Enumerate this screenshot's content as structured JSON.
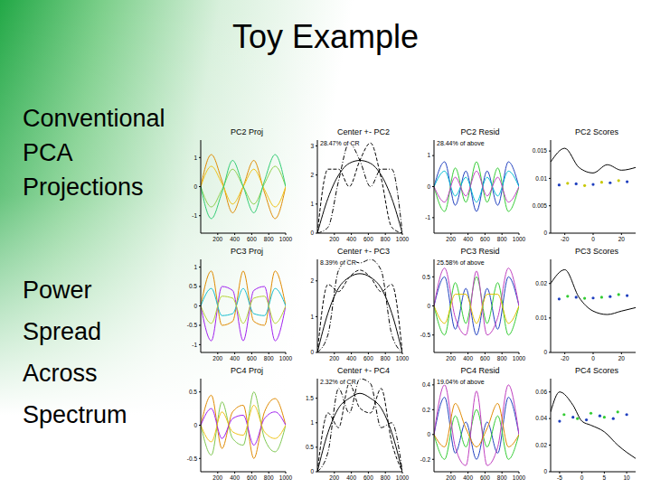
{
  "title": "Toy Example",
  "left_text": [
    [
      "Conventional",
      "PCA",
      "Projections"
    ],
    [
      "Power",
      "Spread",
      "Across",
      "Spectrum"
    ]
  ],
  "chart_data": [
    {
      "type": "line",
      "title": "PC2 Proj",
      "x": [
        0,
        125,
        250,
        375,
        500,
        625,
        750,
        875,
        1000
      ],
      "xlim": [
        0,
        1000
      ],
      "xticks": [
        200,
        400,
        600,
        800,
        1000
      ],
      "ylim": [
        -1.6,
        1.6
      ],
      "yticks": [
        -1,
        0,
        1
      ],
      "series": [
        {
          "type": "line",
          "color": "#e08a00",
          "values": [
            0,
            1.1,
            0.2,
            -0.9,
            0,
            0.9,
            -0.2,
            -1.1,
            0
          ]
        },
        {
          "type": "line",
          "color": "#f0c419",
          "values": [
            0,
            0.7,
            0.1,
            -0.6,
            0,
            0.6,
            -0.1,
            -0.7,
            0
          ]
        },
        {
          "type": "line",
          "color": "#8fd14f",
          "values": [
            0,
            -0.7,
            -0.1,
            0.6,
            0,
            -0.6,
            0.1,
            0.7,
            0
          ]
        },
        {
          "type": "line",
          "color": "#2ecc71",
          "values": [
            0,
            -1.1,
            -0.2,
            0.9,
            0,
            -0.9,
            0.2,
            1.1,
            0
          ]
        }
      ]
    },
    {
      "type": "line",
      "title": "Center +- PC2",
      "annotation": "28.47% of CR",
      "x": [
        0,
        125,
        250,
        375,
        500,
        625,
        750,
        875,
        1000
      ],
      "xlim": [
        0,
        1000
      ],
      "xticks": [
        200,
        400,
        600,
        800,
        1000
      ],
      "ylim": [
        0,
        3.2
      ],
      "yticks": [
        0,
        1,
        2,
        3
      ],
      "series": [
        {
          "type": "line",
          "color": "#000000",
          "line_style": "solid",
          "values": [
            0,
            1.2,
            2.0,
            2.4,
            2.5,
            2.4,
            2.0,
            1.2,
            0
          ]
        },
        {
          "type": "line",
          "color": "#000000",
          "line_style": "dashed",
          "values": [
            0,
            2.2,
            2.2,
            1.6,
            2.5,
            3.1,
            1.9,
            0.2,
            0
          ]
        },
        {
          "type": "line",
          "color": "#000000",
          "line_style": "dashdot",
          "values": [
            0,
            0.2,
            1.8,
            3.1,
            2.5,
            1.6,
            2.2,
            2.2,
            0
          ]
        }
      ]
    },
    {
      "type": "line",
      "title": "PC2 Resid",
      "annotation": "28.44% of above",
      "x": [
        0,
        125,
        250,
        375,
        500,
        625,
        750,
        875,
        1000
      ],
      "xlim": [
        0,
        1000
      ],
      "xticks": [
        200,
        400,
        600,
        800,
        1000
      ],
      "ylim": [
        -1.5,
        1.5
      ],
      "yticks": [
        -1,
        0,
        1
      ],
      "series": [
        {
          "type": "line",
          "color": "#1f3fbf",
          "values": [
            0,
            0.8,
            -0.6,
            0.5,
            -0.8,
            0.5,
            -0.6,
            0.8,
            0
          ]
        },
        {
          "type": "line",
          "color": "#33cc33",
          "values": [
            0,
            -0.8,
            0.6,
            -0.5,
            0.8,
            -0.5,
            0.6,
            -0.8,
            0
          ]
        },
        {
          "type": "line",
          "color": "#00bcd4",
          "values": [
            0,
            0.5,
            -0.3,
            0.3,
            -0.5,
            0.3,
            -0.3,
            0.5,
            0
          ]
        },
        {
          "type": "line",
          "color": "#c040c0",
          "values": [
            0,
            -0.5,
            0.3,
            -0.3,
            0.5,
            -0.3,
            0.3,
            -0.5,
            0
          ]
        }
      ]
    },
    {
      "type": "line",
      "title": "PC2 Scores",
      "xlim": [
        -30,
        30
      ],
      "xticks": [
        -20,
        0,
        20
      ],
      "ylim": [
        0,
        0.017
      ],
      "yticks": [
        0,
        0.005,
        0.01,
        0.015
      ],
      "series": [
        {
          "type": "line",
          "color": "#000000",
          "x": [
            -30,
            -20,
            -10,
            0,
            10,
            20,
            30
          ],
          "values": [
            0.013,
            0.0155,
            0.012,
            0.011,
            0.0125,
            0.0115,
            0.012
          ]
        },
        {
          "type": "scatter",
          "color": "#1f3fbf",
          "x": [
            -24,
            -12,
            0,
            12,
            24
          ],
          "values": [
            0.0088,
            0.009,
            0.0089,
            0.0092,
            0.0094
          ]
        },
        {
          "type": "scatter",
          "color": "#c8c800",
          "x": [
            -18,
            -6,
            6,
            18
          ],
          "values": [
            0.0091,
            0.0087,
            0.0093,
            0.0096
          ]
        }
      ]
    },
    {
      "type": "line",
      "title": "PC3 Proj",
      "x": [
        0,
        125,
        250,
        375,
        500,
        625,
        750,
        875,
        1000
      ],
      "xlim": [
        0,
        1000
      ],
      "xticks": [
        200,
        400,
        600,
        800,
        1000
      ],
      "ylim": [
        -1.2,
        1.2
      ],
      "yticks": [
        -1,
        -0.5,
        0,
        0.5,
        1
      ],
      "series": [
        {
          "type": "line",
          "color": "#e08a00",
          "values": [
            0,
            0.9,
            -0.5,
            -0.4,
            0.9,
            -0.4,
            -0.5,
            0.9,
            0
          ]
        },
        {
          "type": "line",
          "color": "#a020f0",
          "values": [
            0,
            -0.9,
            0.5,
            0.4,
            -0.9,
            0.4,
            0.5,
            -0.9,
            0
          ]
        },
        {
          "type": "line",
          "color": "#17becf",
          "values": [
            0,
            0.45,
            -0.25,
            -0.2,
            0.45,
            -0.2,
            -0.25,
            0.45,
            0
          ]
        },
        {
          "type": "line",
          "color": "#b5d334",
          "values": [
            0,
            -0.45,
            0.25,
            0.2,
            -0.45,
            0.2,
            0.25,
            -0.45,
            0
          ]
        }
      ]
    },
    {
      "type": "line",
      "title": "Center +- PC3",
      "annotation": "8.39% of CR",
      "x": [
        0,
        125,
        250,
        375,
        500,
        625,
        750,
        875,
        1000
      ],
      "xlim": [
        0,
        1000
      ],
      "xticks": [
        200,
        400,
        600,
        800,
        1000
      ],
      "ylim": [
        0,
        2.6
      ],
      "yticks": [
        0,
        1,
        2
      ],
      "series": [
        {
          "type": "line",
          "color": "#000000",
          "line_style": "solid",
          "values": [
            0,
            1.1,
            1.8,
            2.1,
            2.2,
            2.1,
            1.8,
            1.1,
            0
          ]
        },
        {
          "type": "line",
          "color": "#000000",
          "line_style": "dashed",
          "values": [
            0,
            1.9,
            1.7,
            2.1,
            2.3,
            2.1,
            1.7,
            1.9,
            0
          ]
        },
        {
          "type": "line",
          "color": "#000000",
          "line_style": "dashdot",
          "values": [
            0,
            0.5,
            2.3,
            2.6,
            2.5,
            2.6,
            2.3,
            0.5,
            0
          ]
        }
      ]
    },
    {
      "type": "line",
      "title": "PC3 Resid",
      "annotation": "25.58% of above",
      "x": [
        0,
        125,
        250,
        375,
        500,
        625,
        750,
        875,
        1000
      ],
      "xlim": [
        0,
        1000
      ],
      "xticks": [
        200,
        400,
        600,
        800,
        1000
      ],
      "ylim": [
        -0.8,
        0.8
      ],
      "yticks": [
        -0.5,
        0,
        0.5
      ],
      "series": [
        {
          "type": "line",
          "color": "#1f3fbf",
          "values": [
            0,
            0.5,
            -0.4,
            0.3,
            -0.5,
            0.3,
            -0.4,
            0.5,
            0
          ]
        },
        {
          "type": "line",
          "color": "#33cc33",
          "values": [
            0,
            -0.5,
            0.4,
            -0.3,
            0.5,
            -0.3,
            0.4,
            -0.5,
            0
          ]
        },
        {
          "type": "line",
          "color": "#c040c0",
          "values": [
            0,
            0.65,
            -0.2,
            -0.5,
            0.6,
            -0.5,
            -0.2,
            0.65,
            0
          ]
        },
        {
          "type": "line",
          "color": "#e0c000",
          "values": [
            0,
            -0.3,
            0.2,
            0.2,
            -0.3,
            0.2,
            0.2,
            -0.3,
            0
          ]
        }
      ]
    },
    {
      "type": "line",
      "title": "PC3 Scores",
      "xlim": [
        -30,
        30
      ],
      "xticks": [
        -20,
        0,
        20
      ],
      "ylim": [
        0,
        0.027
      ],
      "yticks": [
        0,
        0.01,
        0.02
      ],
      "series": [
        {
          "type": "line",
          "color": "#000000",
          "x": [
            -30,
            -20,
            -10,
            0,
            10,
            20,
            30
          ],
          "values": [
            0.02,
            0.024,
            0.016,
            0.012,
            0.011,
            0.012,
            0.013
          ]
        },
        {
          "type": "scatter",
          "color": "#1f3fbf",
          "x": [
            -24,
            -12,
            0,
            12,
            24
          ],
          "values": [
            0.0155,
            0.016,
            0.0158,
            0.0162,
            0.0165
          ]
        },
        {
          "type": "scatter",
          "color": "#33cc33",
          "x": [
            -18,
            -6,
            6,
            18
          ],
          "values": [
            0.0163,
            0.0157,
            0.016,
            0.0168
          ]
        }
      ]
    },
    {
      "type": "line",
      "title": "PC4 Proj",
      "x": [
        0,
        125,
        250,
        375,
        500,
        625,
        750,
        875,
        1000
      ],
      "xlim": [
        0,
        1000
      ],
      "xticks": [
        200,
        400,
        600,
        800,
        1000
      ],
      "ylim": [
        -0.7,
        0.7
      ],
      "yticks": [
        -0.5,
        0,
        0.5
      ],
      "series": [
        {
          "type": "line",
          "color": "#e08a00",
          "values": [
            0,
            0.45,
            -0.35,
            0.2,
            0.3,
            -0.5,
            0.2,
            0.4,
            0
          ]
        },
        {
          "type": "line",
          "color": "#7ec850",
          "values": [
            0,
            -0.45,
            0.35,
            -0.2,
            -0.3,
            0.5,
            -0.2,
            -0.4,
            0
          ]
        },
        {
          "type": "line",
          "color": "#a020f0",
          "values": [
            0,
            0.25,
            -0.2,
            0.1,
            0.15,
            -0.3,
            0.1,
            0.2,
            0
          ]
        },
        {
          "type": "line",
          "color": "#f0c419",
          "values": [
            0,
            -0.25,
            0.2,
            -0.1,
            -0.15,
            0.3,
            -0.1,
            -0.2,
            0
          ]
        }
      ]
    },
    {
      "type": "line",
      "title": "Center +- PC4",
      "annotation": "2.32% of CR",
      "x": [
        0,
        125,
        250,
        375,
        500,
        625,
        750,
        875,
        1000
      ],
      "xlim": [
        0,
        1000
      ],
      "xticks": [
        200,
        400,
        600,
        800,
        1000
      ],
      "ylim": [
        0,
        1.9
      ],
      "yticks": [
        0,
        0.5,
        1,
        1.5
      ],
      "series": [
        {
          "type": "line",
          "color": "#000000",
          "line_style": "solid",
          "values": [
            0,
            0.8,
            1.3,
            1.5,
            1.6,
            1.5,
            1.3,
            0.8,
            0
          ]
        },
        {
          "type": "line",
          "color": "#000000",
          "line_style": "dashed",
          "values": [
            0,
            1.2,
            0.9,
            1.8,
            1.3,
            1.2,
            1.7,
            0.6,
            0
          ]
        },
        {
          "type": "line",
          "color": "#000000",
          "line_style": "dashdot",
          "values": [
            0,
            0.4,
            1.7,
            1.2,
            1.9,
            1.8,
            0.9,
            1.0,
            0
          ]
        }
      ]
    },
    {
      "type": "line",
      "title": "PC4 Resid",
      "annotation": "19.04% of above",
      "x": [
        0,
        125,
        250,
        375,
        500,
        625,
        750,
        875,
        1000
      ],
      "xlim": [
        0,
        1000
      ],
      "xticks": [
        200,
        400,
        600,
        800,
        1000
      ],
      "ylim": [
        -0.3,
        0.45
      ],
      "yticks": [
        -0.2,
        0,
        0.2,
        0.4
      ],
      "series": [
        {
          "type": "line",
          "color": "#1f3fbf",
          "values": [
            0,
            0.3,
            -0.15,
            0.1,
            -0.2,
            0.1,
            -0.15,
            0.3,
            0
          ]
        },
        {
          "type": "line",
          "color": "#33cc33",
          "values": [
            0,
            -0.2,
            0.15,
            -0.1,
            0.2,
            -0.1,
            0.15,
            -0.2,
            0
          ]
        },
        {
          "type": "line",
          "color": "#c040c0",
          "values": [
            0,
            0.4,
            -0.1,
            -0.25,
            0.35,
            -0.25,
            -0.1,
            0.4,
            0
          ]
        },
        {
          "type": "line",
          "color": "#e08a00",
          "values": [
            0,
            -0.1,
            0.25,
            0.05,
            -0.1,
            0.05,
            0.25,
            -0.1,
            0
          ]
        }
      ]
    },
    {
      "type": "line",
      "title": "PC4 Scores",
      "xlim": [
        -7,
        12
      ],
      "xticks": [
        -5,
        0,
        5,
        10
      ],
      "ylim": [
        0,
        0.07
      ],
      "yticks": [
        0,
        0.02,
        0.04,
        0.06
      ],
      "series": [
        {
          "type": "line",
          "color": "#000000",
          "x": [
            -7,
            -5,
            -2,
            0,
            2,
            5,
            8,
            12
          ],
          "values": [
            0.045,
            0.06,
            0.05,
            0.038,
            0.035,
            0.03,
            0.02,
            0.01
          ]
        },
        {
          "type": "scatter",
          "color": "#1f3fbf",
          "x": [
            -5,
            -2,
            1,
            4,
            7,
            10
          ],
          "values": [
            0.038,
            0.041,
            0.039,
            0.042,
            0.04,
            0.043
          ]
        },
        {
          "type": "scatter",
          "color": "#33cc33",
          "x": [
            -4,
            -1,
            2,
            5,
            8
          ],
          "values": [
            0.043,
            0.04,
            0.044,
            0.041,
            0.045
          ]
        }
      ]
    }
  ]
}
